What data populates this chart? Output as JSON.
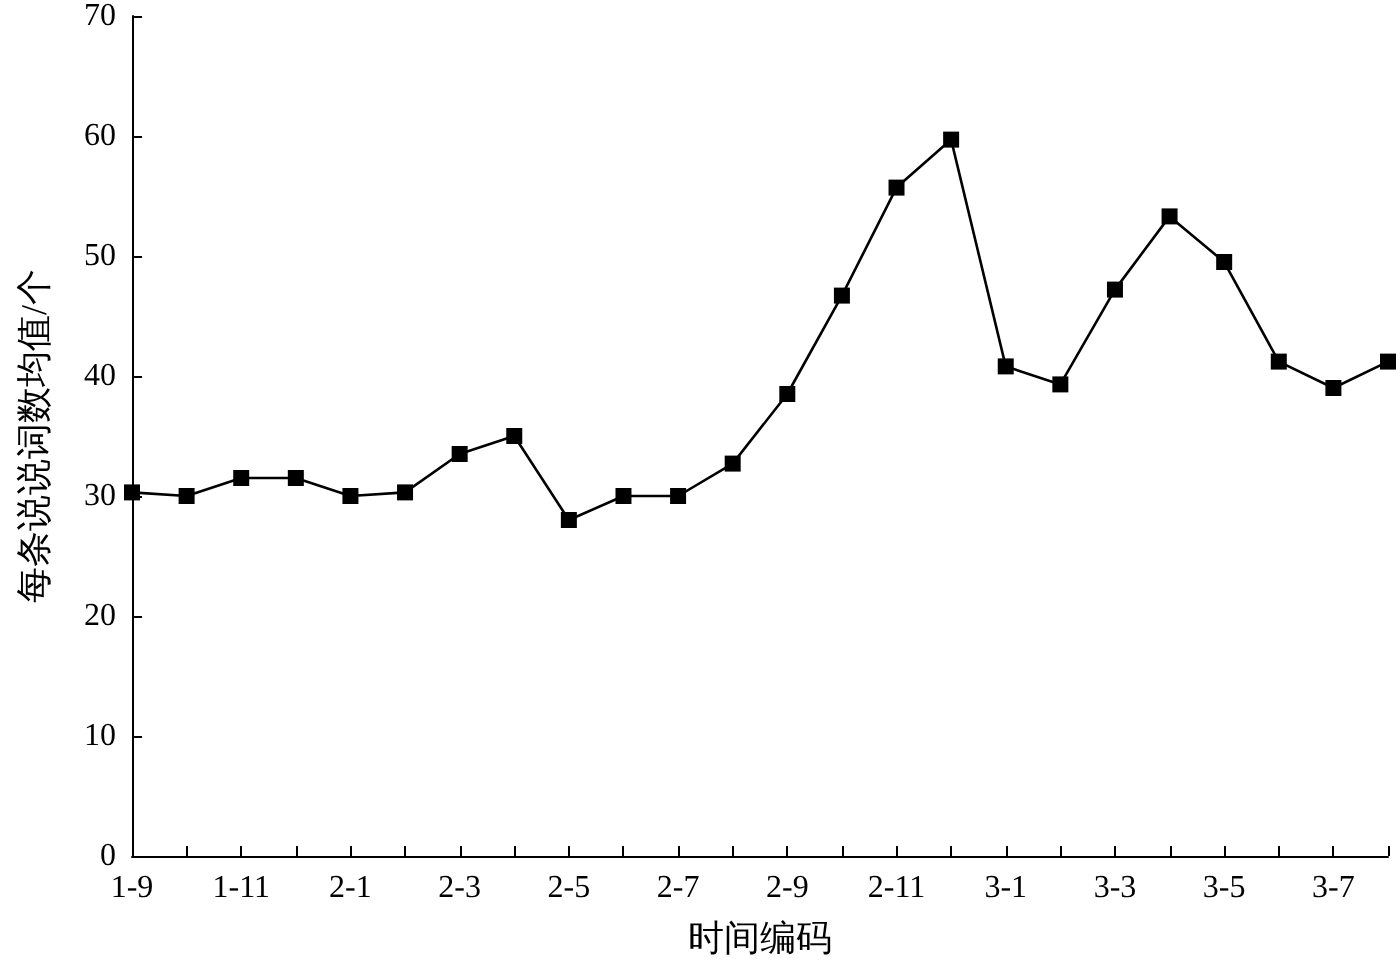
{
  "chart_data": {
    "type": "line",
    "xlabel": "时间编码",
    "ylabel": "每条说说词数均值/个",
    "categories": [
      "1-9",
      null,
      "1-11",
      null,
      "2-1",
      null,
      "2-3",
      null,
      "2-5",
      null,
      "2-7",
      null,
      "2-9",
      null,
      "2-11",
      null,
      "3-1",
      null,
      "3-3",
      null,
      "3-5",
      null,
      "3-7",
      null
    ],
    "series": [
      {
        "color": "#000000",
        "values": [
          30.3,
          30,
          31.5,
          31.5,
          30,
          30.3,
          33.5,
          35,
          28,
          30,
          30,
          32.7,
          38.5,
          46.7,
          55.7,
          59.7,
          40.8,
          39.3,
          47.2,
          53.3,
          49.5,
          41.2,
          39,
          41.2
        ]
      }
    ],
    "ylim": [
      0,
      70
    ],
    "yticks": [
      0,
      10,
      20,
      30,
      40,
      50,
      60,
      70
    ],
    "grid": false,
    "marker": "square",
    "line_style": "solid"
  }
}
